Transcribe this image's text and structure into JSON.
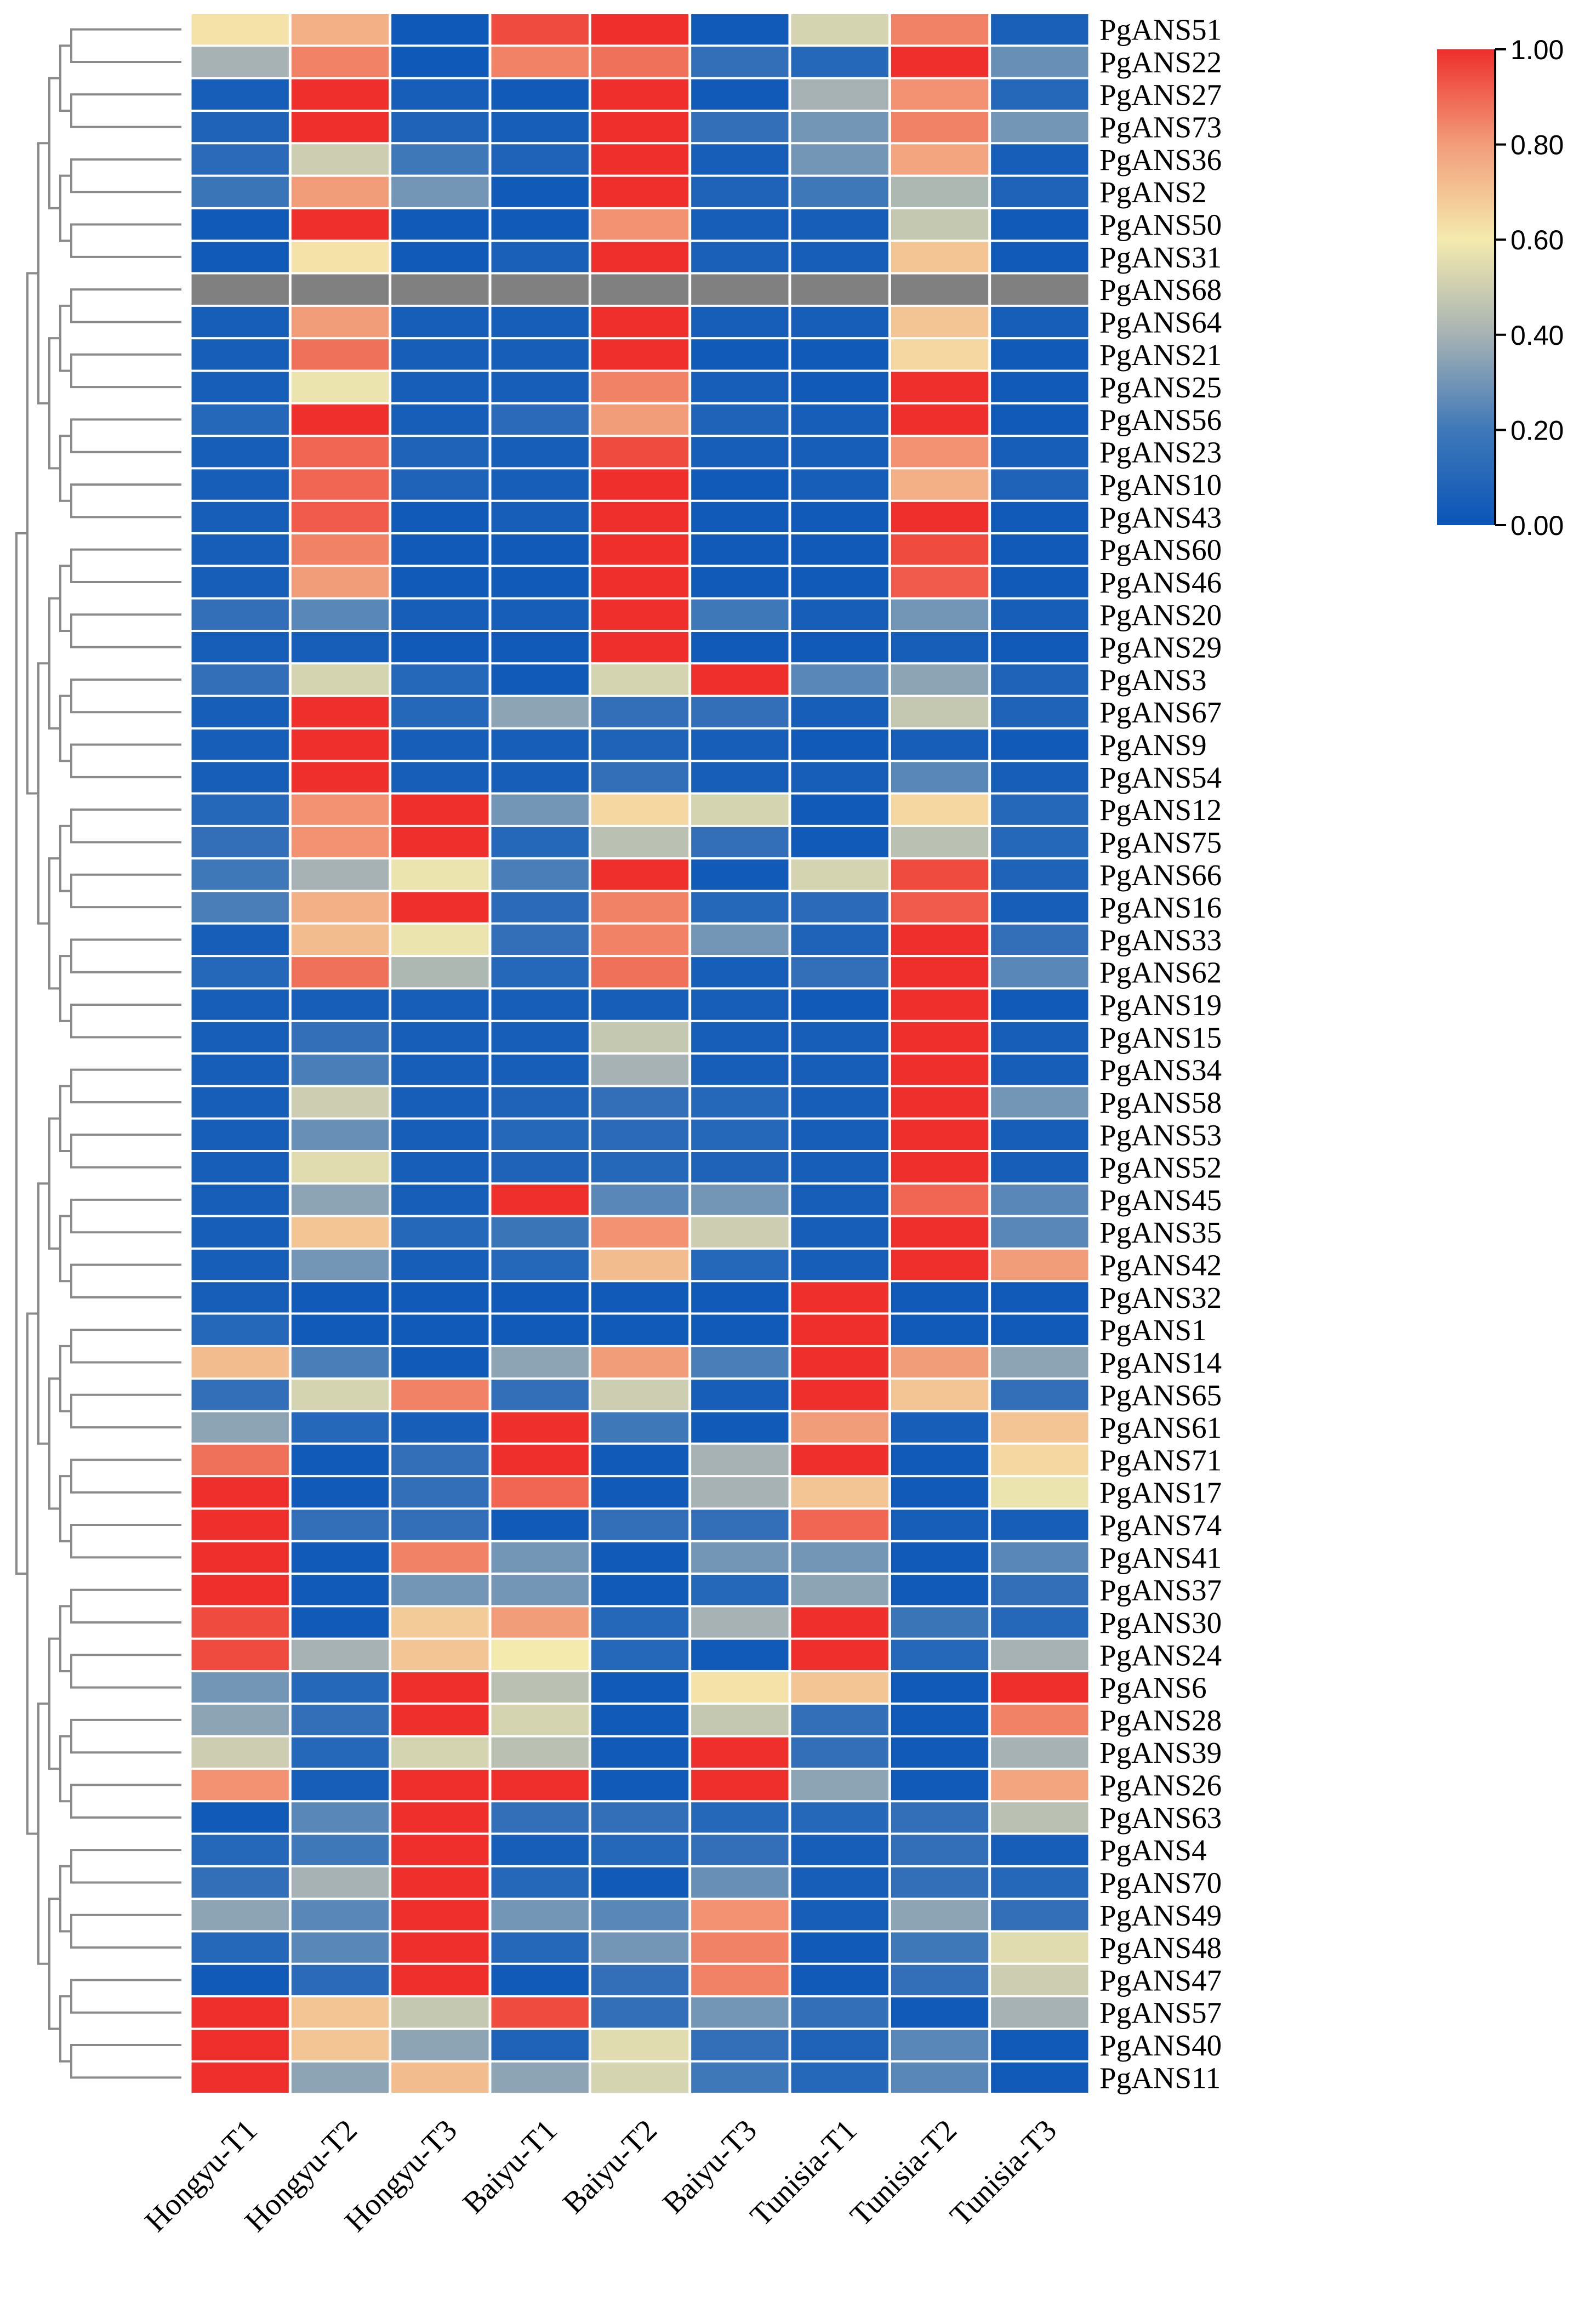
{
  "chart_data": {
    "type": "heatmap",
    "title": "",
    "xlabel": "",
    "ylabel": "",
    "columns": [
      "Hongyu-T1",
      "Hongyu-T2",
      "Hongyu-T3",
      "Baiyu-T1",
      "Baiyu-T2",
      "Baiyu-T3",
      "Tunisia-T1",
      "Tunisia-T2",
      "Tunisia-T3"
    ],
    "rows": [
      "PgANS51",
      "PgANS22",
      "PgANS27",
      "PgANS73",
      "PgANS36",
      "PgANS2",
      "PgANS50",
      "PgANS31",
      "PgANS68",
      "PgANS64",
      "PgANS21",
      "PgANS25",
      "PgANS56",
      "PgANS23",
      "PgANS10",
      "PgANS43",
      "PgANS60",
      "PgANS46",
      "PgANS20",
      "PgANS29",
      "PgANS3",
      "PgANS67",
      "PgANS9",
      "PgANS54",
      "PgANS12",
      "PgANS75",
      "PgANS66",
      "PgANS16",
      "PgANS33",
      "PgANS62",
      "PgANS19",
      "PgANS15",
      "PgANS34",
      "PgANS58",
      "PgANS53",
      "PgANS52",
      "PgANS45",
      "PgANS35",
      "PgANS42",
      "PgANS32",
      "PgANS1",
      "PgANS14",
      "PgANS65",
      "PgANS61",
      "PgANS71",
      "PgANS17",
      "PgANS74",
      "PgANS41",
      "PgANS37",
      "PgANS30",
      "PgANS24",
      "PgANS6",
      "PgANS28",
      "PgANS39",
      "PgANS26",
      "PgANS63",
      "PgANS4",
      "PgANS70",
      "PgANS49",
      "PgANS48",
      "PgANS47",
      "PgANS57",
      "PgANS40",
      "PgANS11"
    ],
    "values": [
      [
        0.62,
        0.75,
        0.02,
        0.95,
        1.0,
        0.03,
        0.52,
        0.85,
        0.06
      ],
      [
        0.4,
        0.85,
        0.02,
        0.85,
        0.88,
        0.15,
        0.1,
        1.0,
        0.28
      ],
      [
        0.05,
        1.0,
        0.05,
        0.03,
        1.0,
        0.03,
        0.4,
        0.82,
        0.1
      ],
      [
        0.08,
        1.0,
        0.08,
        0.05,
        1.0,
        0.15,
        0.3,
        0.85,
        0.3
      ],
      [
        0.12,
        0.5,
        0.2,
        0.08,
        1.0,
        0.05,
        0.3,
        0.78,
        0.05
      ],
      [
        0.18,
        0.8,
        0.3,
        0.03,
        1.0,
        0.08,
        0.2,
        0.42,
        0.08
      ],
      [
        0.03,
        1.0,
        0.03,
        0.03,
        0.82,
        0.05,
        0.05,
        0.48,
        0.03
      ],
      [
        0.03,
        0.62,
        0.03,
        0.06,
        1.0,
        0.06,
        0.05,
        0.7,
        0.03
      ],
      [
        null,
        null,
        null,
        null,
        null,
        null,
        null,
        null,
        null
      ],
      [
        0.05,
        0.8,
        0.05,
        0.05,
        1.0,
        0.05,
        0.05,
        0.7,
        0.05
      ],
      [
        0.05,
        0.88,
        0.05,
        0.05,
        1.0,
        0.03,
        0.03,
        0.65,
        0.03
      ],
      [
        0.05,
        0.58,
        0.05,
        0.05,
        0.85,
        0.05,
        0.03,
        1.0,
        0.03
      ],
      [
        0.1,
        1.0,
        0.05,
        0.12,
        0.8,
        0.08,
        0.05,
        1.0,
        0.03
      ],
      [
        0.05,
        0.9,
        0.08,
        0.05,
        0.95,
        0.05,
        0.05,
        0.82,
        0.05
      ],
      [
        0.05,
        0.9,
        0.08,
        0.05,
        1.0,
        0.03,
        0.05,
        0.75,
        0.08
      ],
      [
        0.05,
        0.92,
        0.03,
        0.05,
        1.0,
        0.03,
        0.03,
        1.0,
        0.03
      ],
      [
        0.05,
        0.85,
        0.03,
        0.03,
        1.0,
        0.03,
        0.03,
        0.95,
        0.03
      ],
      [
        0.05,
        0.8,
        0.03,
        0.03,
        1.0,
        0.03,
        0.03,
        0.92,
        0.03
      ],
      [
        0.15,
        0.25,
        0.05,
        0.05,
        1.0,
        0.2,
        0.05,
        0.3,
        0.05
      ],
      [
        0.05,
        0.05,
        0.03,
        0.03,
        1.0,
        0.03,
        0.03,
        0.05,
        0.03
      ],
      [
        0.15,
        0.52,
        0.1,
        0.03,
        0.52,
        1.0,
        0.25,
        0.35,
        0.08
      ],
      [
        0.05,
        1.0,
        0.1,
        0.35,
        0.15,
        0.15,
        0.05,
        0.48,
        0.08
      ],
      [
        0.05,
        1.0,
        0.05,
        0.05,
        0.08,
        0.05,
        0.03,
        0.05,
        0.03
      ],
      [
        0.05,
        1.0,
        0.05,
        0.05,
        0.15,
        0.05,
        0.05,
        0.25,
        0.05
      ],
      [
        0.1,
        0.82,
        1.0,
        0.3,
        0.65,
        0.52,
        0.03,
        0.65,
        0.1
      ],
      [
        0.15,
        0.82,
        1.0,
        0.1,
        0.45,
        0.15,
        0.03,
        0.45,
        0.1
      ],
      [
        0.2,
        0.4,
        0.58,
        0.22,
        1.0,
        0.03,
        0.52,
        0.95,
        0.08
      ],
      [
        0.22,
        0.75,
        1.0,
        0.12,
        0.85,
        0.1,
        0.12,
        0.92,
        0.05
      ],
      [
        0.05,
        0.72,
        0.58,
        0.15,
        0.85,
        0.3,
        0.08,
        1.0,
        0.15
      ],
      [
        0.1,
        0.88,
        0.42,
        0.1,
        0.88,
        0.05,
        0.15,
        1.0,
        0.25
      ],
      [
        0.05,
        0.05,
        0.05,
        0.05,
        0.05,
        0.05,
        0.03,
        1.0,
        0.03
      ],
      [
        0.05,
        0.15,
        0.05,
        0.05,
        0.48,
        0.05,
        0.05,
        1.0,
        0.05
      ],
      [
        0.05,
        0.22,
        0.05,
        0.05,
        0.4,
        0.05,
        0.05,
        1.0,
        0.05
      ],
      [
        0.05,
        0.5,
        0.05,
        0.08,
        0.15,
        0.1,
        0.05,
        1.0,
        0.3
      ],
      [
        0.05,
        0.28,
        0.05,
        0.1,
        0.12,
        0.1,
        0.05,
        1.0,
        0.05
      ],
      [
        0.05,
        0.55,
        0.05,
        0.08,
        0.1,
        0.08,
        0.05,
        1.0,
        0.05
      ],
      [
        0.05,
        0.35,
        0.05,
        1.0,
        0.25,
        0.3,
        0.05,
        0.9,
        0.25
      ],
      [
        0.05,
        0.7,
        0.1,
        0.18,
        0.82,
        0.5,
        0.05,
        1.0,
        0.25
      ],
      [
        0.05,
        0.3,
        0.05,
        0.1,
        0.72,
        0.1,
        0.05,
        1.0,
        0.8
      ],
      [
        0.05,
        0.03,
        0.03,
        0.03,
        0.03,
        0.03,
        1.0,
        0.03,
        0.03
      ],
      [
        0.1,
        0.03,
        0.03,
        0.03,
        0.03,
        0.03,
        1.0,
        0.03,
        0.03
      ],
      [
        0.72,
        0.22,
        0.03,
        0.35,
        0.8,
        0.22,
        1.0,
        0.8,
        0.35
      ],
      [
        0.15,
        0.52,
        0.85,
        0.15,
        0.5,
        0.05,
        1.0,
        0.7,
        0.15
      ],
      [
        0.35,
        0.1,
        0.05,
        1.0,
        0.2,
        0.03,
        0.8,
        0.05,
        0.7
      ],
      [
        0.88,
        0.03,
        0.15,
        1.0,
        0.03,
        0.4,
        1.0,
        0.03,
        0.65
      ],
      [
        1.0,
        0.03,
        0.15,
        0.9,
        0.03,
        0.4,
        0.7,
        0.03,
        0.58
      ],
      [
        1.0,
        0.15,
        0.15,
        0.03,
        0.15,
        0.15,
        0.9,
        0.05,
        0.05
      ],
      [
        1.0,
        0.03,
        0.85,
        0.3,
        0.03,
        0.3,
        0.3,
        0.03,
        0.25
      ],
      [
        1.0,
        0.03,
        0.3,
        0.3,
        0.03,
        0.1,
        0.35,
        0.03,
        0.15
      ],
      [
        0.95,
        0.03,
        0.68,
        0.8,
        0.1,
        0.4,
        1.0,
        0.18,
        0.1
      ],
      [
        0.95,
        0.4,
        0.7,
        0.6,
        0.1,
        0.03,
        1.0,
        0.1,
        0.4
      ],
      [
        0.3,
        0.1,
        1.0,
        0.45,
        0.03,
        0.62,
        0.7,
        0.03,
        1.0
      ],
      [
        0.35,
        0.15,
        1.0,
        0.52,
        0.03,
        0.48,
        0.15,
        0.03,
        0.85
      ],
      [
        0.5,
        0.1,
        0.52,
        0.45,
        0.03,
        1.0,
        0.15,
        0.03,
        0.4
      ],
      [
        0.82,
        0.05,
        1.0,
        1.0,
        0.03,
        1.0,
        0.35,
        0.03,
        0.78
      ],
      [
        0.03,
        0.25,
        1.0,
        0.15,
        0.15,
        0.1,
        0.1,
        0.15,
        0.45
      ],
      [
        0.1,
        0.2,
        1.0,
        0.05,
        0.1,
        0.15,
        0.05,
        0.15,
        0.05
      ],
      [
        0.15,
        0.4,
        1.0,
        0.1,
        0.03,
        0.28,
        0.05,
        0.15,
        0.1
      ],
      [
        0.35,
        0.25,
        1.0,
        0.3,
        0.25,
        0.82,
        0.05,
        0.35,
        0.15
      ],
      [
        0.1,
        0.25,
        1.0,
        0.1,
        0.3,
        0.85,
        0.03,
        0.2,
        0.55
      ],
      [
        0.03,
        0.12,
        1.0,
        0.03,
        0.15,
        0.85,
        0.03,
        0.15,
        0.5
      ],
      [
        1.0,
        0.7,
        0.48,
        0.95,
        0.15,
        0.3,
        0.15,
        0.03,
        0.4
      ],
      [
        1.0,
        0.7,
        0.35,
        0.08,
        0.55,
        0.15,
        0.08,
        0.25,
        0.03
      ],
      [
        1.0,
        0.35,
        0.72,
        0.35,
        0.52,
        0.2,
        0.1,
        0.25,
        0.03
      ]
    ],
    "colorbar": {
      "min": 0.0,
      "max": 1.0,
      "ticks": [
        "0.00",
        "0.20",
        "0.40",
        "0.60",
        "0.80",
        "1.00"
      ],
      "colors": [
        "#0a55b8",
        "#3f78b8",
        "#a6b2b3",
        "#f4eaae",
        "#f29d7a",
        "#ee2f2b"
      ],
      "missing_color": "#808080"
    },
    "dendrogram": "row clustering tree shown on the left"
  }
}
